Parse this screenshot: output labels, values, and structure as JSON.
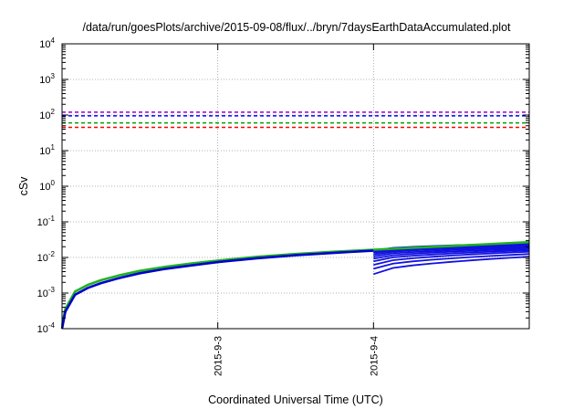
{
  "chart_data": {
    "type": "line",
    "title": "/data/run/goesPlots/archive/2015-09-08/flux/../bryn/7daysEarthDataAccumulated.plot",
    "xlabel": "Coordinated Universal Time (UTC)",
    "ylabel": "cSv",
    "y_scale": "log",
    "ylim": [
      0.0001,
      10000
    ],
    "xlim": [
      "2015-09-02 00:00",
      "2015-09-05 00:00"
    ],
    "grid": true,
    "x_ticks": [
      "2015-9-3",
      "2015-9-4"
    ],
    "y_ticks": [
      {
        "base": "10",
        "exp": "-4"
      },
      {
        "base": "10",
        "exp": "-3"
      },
      {
        "base": "10",
        "exp": "-2"
      },
      {
        "base": "10",
        "exp": "-1"
      },
      {
        "base": "10",
        "exp": "0"
      },
      {
        "base": "10",
        "exp": "1"
      },
      {
        "base": "10",
        "exp": "2"
      },
      {
        "base": "10",
        "exp": "3"
      },
      {
        "base": "10",
        "exp": "4"
      }
    ],
    "threshold_lines": [
      {
        "color": "#9400d3",
        "value": 120
      },
      {
        "color": "#0000ff",
        "value": 95
      },
      {
        "color": "#00a000",
        "value": 60
      },
      {
        "color": "#ff0000",
        "value": 45
      }
    ],
    "series_colors": {
      "green": "#22b222",
      "blue": "#1010e0",
      "dark_blue": "#0000cc"
    },
    "accumulated_curve": {
      "x": [
        "2015-09-02 00:00",
        "2015-09-02 00:30",
        "2015-09-02 02:00",
        "2015-09-02 04:00",
        "2015-09-02 06:00",
        "2015-09-02 09:00",
        "2015-09-02 12:00",
        "2015-09-02 16:00",
        "2015-09-02 20:00",
        "2015-09-03 00:00",
        "2015-09-03 06:00",
        "2015-09-03 12:00",
        "2015-09-03 18:00",
        "2015-09-04 00:00"
      ],
      "y": [
        0.0001,
        0.0003,
        0.0009,
        0.0014,
        0.0019,
        0.0027,
        0.0036,
        0.0048,
        0.006,
        0.0074,
        0.0095,
        0.0115,
        0.0135,
        0.0155
      ]
    },
    "green_curve": {
      "x": [
        "2015-09-02 00:00",
        "2015-09-02 00:30",
        "2015-09-02 02:00",
        "2015-09-02 04:00",
        "2015-09-02 06:00",
        "2015-09-02 09:00",
        "2015-09-02 12:00",
        "2015-09-02 16:00",
        "2015-09-02 20:00",
        "2015-09-03 00:00",
        "2015-09-03 06:00",
        "2015-09-03 12:00",
        "2015-09-03 18:00",
        "2015-09-04 00:00",
        "2015-09-04 12:00",
        "2015-09-05 00:00"
      ],
      "y": [
        0.00012,
        0.00036,
        0.0011,
        0.0017,
        0.0023,
        0.0032,
        0.0042,
        0.0055,
        0.0068,
        0.0082,
        0.0104,
        0.0125,
        0.0145,
        0.0165,
        0.021,
        0.027
      ]
    },
    "fan_start_values": [
      0.0034,
      0.0048,
      0.0062,
      0.0078,
      0.0092,
      0.0106,
      0.012,
      0.0134,
      0.0146,
      0.0158
    ],
    "fan_end_values": [
      0.0105,
      0.0125,
      0.0145,
      0.016,
      0.0175,
      0.019,
      0.0205,
      0.022,
      0.0235,
      0.025
    ]
  }
}
